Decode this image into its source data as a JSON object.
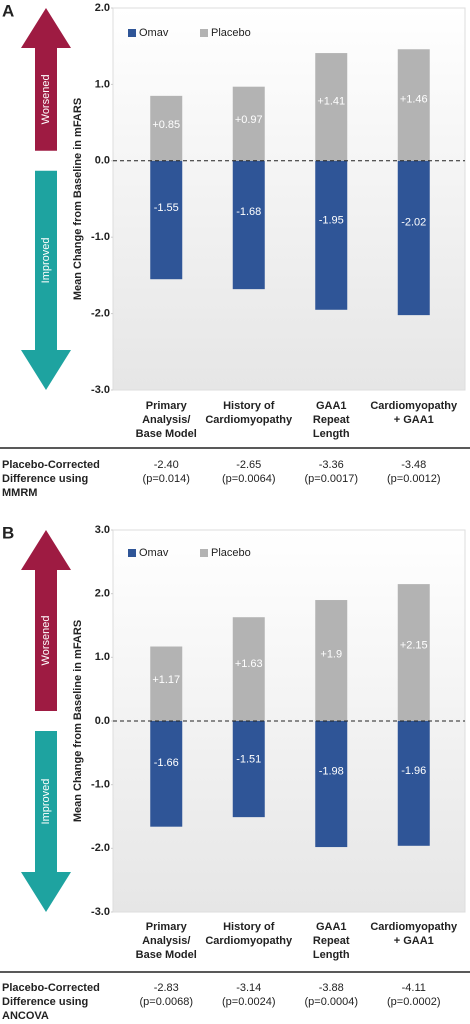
{
  "chart_data": [
    {
      "type": "bar",
      "panel": "A",
      "ylabel": "Mean Change from Baseline in mFARS",
      "arrow_labels": [
        "Worsened",
        "Improved"
      ],
      "categories": [
        [
          "Primary",
          "Analysis/",
          "Base Model"
        ],
        [
          "History of",
          "Cardiomyopathy"
        ],
        [
          "GAA1",
          "Repeat",
          "Length"
        ],
        [
          "Cardiomyopathy",
          "+ GAA1"
        ]
      ],
      "series": [
        {
          "name": "Omav",
          "color": "#2f5597",
          "values": [
            -1.55,
            -1.68,
            -1.95,
            -2.02
          ]
        },
        {
          "name": "Placebo",
          "color": "#b3b3b3",
          "values": [
            0.85,
            0.97,
            1.41,
            1.46
          ],
          "value_labels": [
            "+0.85",
            "+0.97",
            "+1.41",
            "+1.46"
          ]
        }
      ],
      "ylim": [
        -3,
        2
      ],
      "yticks": [
        {
          "value": -3,
          "label": "-3.0"
        },
        {
          "value": -2,
          "label": "-2.0"
        },
        {
          "value": -1,
          "label": "-1.0"
        },
        {
          "value": 0,
          "label": "0.0"
        },
        {
          "value": 1,
          "label": "1.0"
        },
        {
          "value": 2,
          "label": "2.0"
        }
      ],
      "table": {
        "label": [
          "Placebo-Corrected",
          "Difference using",
          "MMRM"
        ],
        "differences": [
          "-2.40",
          "-2.65",
          "-3.36",
          "-3.48"
        ],
        "p_values": [
          "(p=0.014)",
          "(p=0.0064)",
          "(p=0.0017)",
          "(p=0.0012)"
        ]
      }
    },
    {
      "type": "bar",
      "panel": "B",
      "ylabel": "Mean Change from Baseline in mFARS",
      "arrow_labels": [
        "Worsened",
        "Improved"
      ],
      "categories": [
        [
          "Primary",
          "Analysis/",
          "Base Model"
        ],
        [
          "History of",
          "Cardiomyopathy"
        ],
        [
          "GAA1",
          "Repeat",
          "Length"
        ],
        [
          "Cardiomyopathy",
          "+ GAA1"
        ]
      ],
      "series": [
        {
          "name": "Omav",
          "color": "#2f5597",
          "values": [
            -1.66,
            -1.51,
            -1.98,
            -1.96
          ]
        },
        {
          "name": "Placebo",
          "color": "#b3b3b3",
          "values": [
            1.17,
            1.63,
            1.9,
            2.15
          ],
          "value_labels": [
            "+1.17",
            "+1.63",
            "+1.9",
            "+2.15"
          ]
        }
      ],
      "ylim": [
        -3,
        3
      ],
      "yticks": [
        {
          "value": -3,
          "label": "-3.0"
        },
        {
          "value": -2,
          "label": "-2.0"
        },
        {
          "value": -1,
          "label": "-1.0"
        },
        {
          "value": 0,
          "label": "0.0"
        },
        {
          "value": 1,
          "label": "1.0"
        },
        {
          "value": 2,
          "label": "2.0"
        },
        {
          "value": 3,
          "label": "3.0"
        }
      ],
      "table": {
        "label": [
          "Placebo-Corrected",
          "Difference using",
          "ANCOVA"
        ],
        "differences": [
          "-2.83",
          "-3.14",
          "-3.88",
          "-4.11"
        ],
        "p_values": [
          "(p=0.0068)",
          "(p=0.0024)",
          "(p=0.0004)",
          "(p=0.0002)"
        ]
      }
    }
  ]
}
